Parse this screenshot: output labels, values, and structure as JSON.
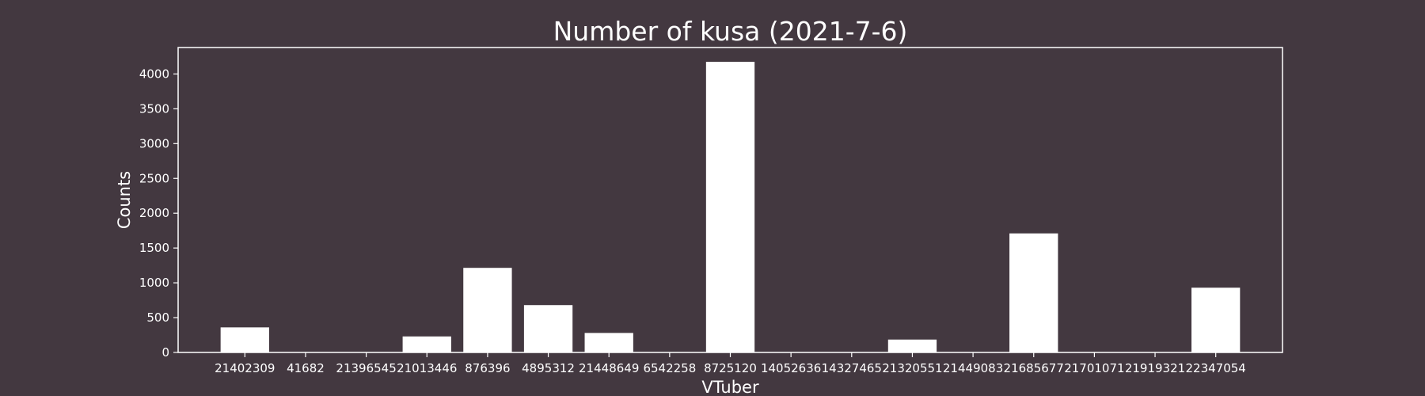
{
  "chart_data": {
    "type": "bar",
    "title": "Number of kusa (2021-7-6)",
    "xlabel": "VTuber",
    "ylabel": "Counts",
    "categories": [
      "21402309",
      "41682",
      "21396545",
      "21013446",
      "876396",
      "4895312",
      "21448649",
      "6542258",
      "8725120",
      "14052636",
      "14327465",
      "21320551",
      "21449083",
      "21685677",
      "21701071",
      "21919321",
      "22347054"
    ],
    "values": [
      360,
      0,
      0,
      230,
      1215,
      680,
      280,
      0,
      4175,
      0,
      0,
      185,
      0,
      1710,
      0,
      0,
      930
    ],
    "ylim": [
      0,
      4380
    ],
    "yticks": [
      0,
      500,
      1000,
      1500,
      2000,
      2500,
      3000,
      3500,
      4000
    ],
    "grid": false,
    "colors": {
      "background": "#433840",
      "bar": "#ffffff",
      "text": "#ffffff"
    }
  }
}
